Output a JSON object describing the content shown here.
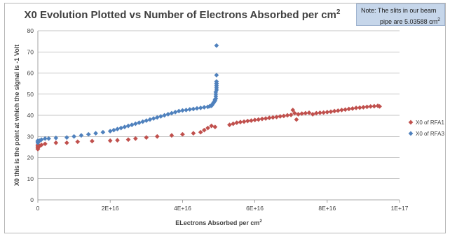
{
  "chart_data": {
    "type": "scatter",
    "title": "X0 Evolution Plotted vs Number of Electrons Absorbed per cm",
    "title_superscript": "2",
    "xlabel": "ELectrons Absorbed per cm",
    "xlabel_superscript": "2",
    "ylabel": "X0     this is the point at which the signal is -1 Volt",
    "xlim": [
      0,
      1e+17
    ],
    "ylim": [
      0,
      80
    ],
    "x_ticks": [
      "0",
      "2E+16",
      "4E+16",
      "6E+16",
      "8E+16",
      "1E+17"
    ],
    "x_tick_values": [
      0,
      2e+16,
      4e+16,
      6e+16,
      8e+16,
      1e+17
    ],
    "y_ticks": [
      "0",
      "10",
      "20",
      "30",
      "40",
      "50",
      "60",
      "70",
      "80"
    ],
    "y_tick_values": [
      0,
      10,
      20,
      30,
      40,
      50,
      60,
      70,
      80
    ],
    "grid": "horizontal",
    "legend_position": "right",
    "note": {
      "line1": "Note:  The slits in our beam",
      "line2": "pipe are 5.03588  cm",
      "line2_superscript": "2"
    },
    "series": [
      {
        "name": "X0 of RFA1",
        "color": "#c0504d",
        "marker": "diamond",
        "points": [
          [
            0,
            24
          ],
          [
            0,
            24.5
          ],
          [
            0,
            25
          ],
          [
            0,
            25.5
          ],
          [
            0,
            26
          ],
          [
            500000000000000.0,
            25.5
          ],
          [
            1000000000000000.0,
            26
          ],
          [
            2000000000000000.0,
            26.5
          ],
          [
            5000000000000000.0,
            27
          ],
          [
            8000000000000000.0,
            27
          ],
          [
            1.1e+16,
            27.5
          ],
          [
            1.5e+16,
            27.8
          ],
          [
            2e+16,
            28
          ],
          [
            2.2e+16,
            28.2
          ],
          [
            2.5e+16,
            28.5
          ],
          [
            2.7e+16,
            29
          ],
          [
            3e+16,
            29.5
          ],
          [
            3.3e+16,
            30
          ],
          [
            3.7e+16,
            30.5
          ],
          [
            4e+16,
            31
          ],
          [
            4.3e+16,
            31.5
          ],
          [
            4.5e+16,
            32
          ],
          [
            4.6e+16,
            33
          ],
          [
            4.7e+16,
            34
          ],
          [
            4.8e+16,
            35
          ],
          [
            4.9e+16,
            34.5
          ],
          [
            5.3e+16,
            35.5
          ],
          [
            5.4e+16,
            36
          ],
          [
            5.5e+16,
            36.5
          ],
          [
            5.6e+16,
            36.8
          ],
          [
            5.7e+16,
            37
          ],
          [
            5.8e+16,
            37.3
          ],
          [
            5.9e+16,
            37.5
          ],
          [
            6e+16,
            37.8
          ],
          [
            6.1e+16,
            38
          ],
          [
            6.2e+16,
            38.3
          ],
          [
            6.3e+16,
            38.5
          ],
          [
            6.4e+16,
            38.8
          ],
          [
            6.5e+16,
            39
          ],
          [
            6.6e+16,
            39.2
          ],
          [
            6.7e+16,
            39.5
          ],
          [
            6.8e+16,
            39.7
          ],
          [
            6.9e+16,
            40
          ],
          [
            7e+16,
            40.2
          ],
          [
            7.05e+16,
            42.5
          ],
          [
            7.1e+16,
            41
          ],
          [
            7.15e+16,
            38
          ],
          [
            7.2e+16,
            40.5
          ],
          [
            7.3e+16,
            40.8
          ],
          [
            7.4e+16,
            41
          ],
          [
            7.5e+16,
            41.2
          ],
          [
            7.6e+16,
            40.5
          ],
          [
            7.7e+16,
            41
          ],
          [
            7.8e+16,
            41.2
          ],
          [
            7.9e+16,
            41.3
          ],
          [
            8e+16,
            41.5
          ],
          [
            8.1e+16,
            41.7
          ],
          [
            8.2e+16,
            42
          ],
          [
            8.3e+16,
            42.2
          ],
          [
            8.4e+16,
            42.5
          ],
          [
            8.5e+16,
            42.7
          ],
          [
            8.6e+16,
            43
          ],
          [
            8.7e+16,
            43.2
          ],
          [
            8.8e+16,
            43.5
          ],
          [
            8.9e+16,
            43.6
          ],
          [
            9e+16,
            43.8
          ],
          [
            9.1e+16,
            44
          ],
          [
            9.2e+16,
            44.2
          ],
          [
            9.3e+16,
            44.3
          ],
          [
            9.4e+16,
            44.5
          ],
          [
            9.45e+16,
            44.2
          ]
        ]
      },
      {
        "name": "X0 of RFA3",
        "color": "#4f81bd",
        "marker": "diamond",
        "points": [
          [
            0,
            27
          ],
          [
            0,
            27.5
          ],
          [
            0,
            28
          ],
          [
            500000000000000.0,
            28
          ],
          [
            1000000000000000.0,
            28.5
          ],
          [
            2000000000000000.0,
            29
          ],
          [
            3000000000000000.0,
            29
          ],
          [
            5000000000000000.0,
            29.3
          ],
          [
            8000000000000000.0,
            29.5
          ],
          [
            1e+16,
            30
          ],
          [
            1.2e+16,
            30.5
          ],
          [
            1.4e+16,
            31
          ],
          [
            1.6e+16,
            31.5
          ],
          [
            1.8e+16,
            32
          ],
          [
            2e+16,
            32.5
          ],
          [
            2.1e+16,
            33
          ],
          [
            2.2e+16,
            33.5
          ],
          [
            2.3e+16,
            34
          ],
          [
            2.4e+16,
            34.5
          ],
          [
            2.5e+16,
            35
          ],
          [
            2.6e+16,
            35.5
          ],
          [
            2.7e+16,
            36
          ],
          [
            2.8e+16,
            36.5
          ],
          [
            2.9e+16,
            37
          ],
          [
            3e+16,
            37.5
          ],
          [
            3.1e+16,
            38
          ],
          [
            3.2e+16,
            38.5
          ],
          [
            3.3e+16,
            39
          ],
          [
            3.4e+16,
            39.5
          ],
          [
            3.5e+16,
            40
          ],
          [
            3.6e+16,
            40.5
          ],
          [
            3.7e+16,
            41
          ],
          [
            3.8e+16,
            41.5
          ],
          [
            3.9e+16,
            42
          ],
          [
            4e+16,
            42.3
          ],
          [
            4.1e+16,
            42.5
          ],
          [
            4.2e+16,
            42.8
          ],
          [
            4.3e+16,
            43
          ],
          [
            4.4e+16,
            43.3
          ],
          [
            4.5e+16,
            43.5
          ],
          [
            4.6e+16,
            43.8
          ],
          [
            4.7e+16,
            44
          ],
          [
            4.75e+16,
            44.3
          ],
          [
            4.8e+16,
            44.5
          ],
          [
            4.82e+16,
            45
          ],
          [
            4.84e+16,
            45.5
          ],
          [
            4.86e+16,
            46
          ],
          [
            4.88e+16,
            46.5
          ],
          [
            4.9e+16,
            47
          ],
          [
            4.9e+16,
            47.5
          ],
          [
            4.92e+16,
            48
          ],
          [
            4.92e+16,
            49
          ],
          [
            4.92e+16,
            50
          ],
          [
            4.92e+16,
            51
          ],
          [
            4.94e+16,
            52
          ],
          [
            4.94e+16,
            53
          ],
          [
            4.94e+16,
            54
          ],
          [
            4.94e+16,
            55
          ],
          [
            4.94e+16,
            56
          ],
          [
            4.94e+16,
            59
          ],
          [
            4.94e+16,
            73
          ]
        ]
      }
    ]
  }
}
